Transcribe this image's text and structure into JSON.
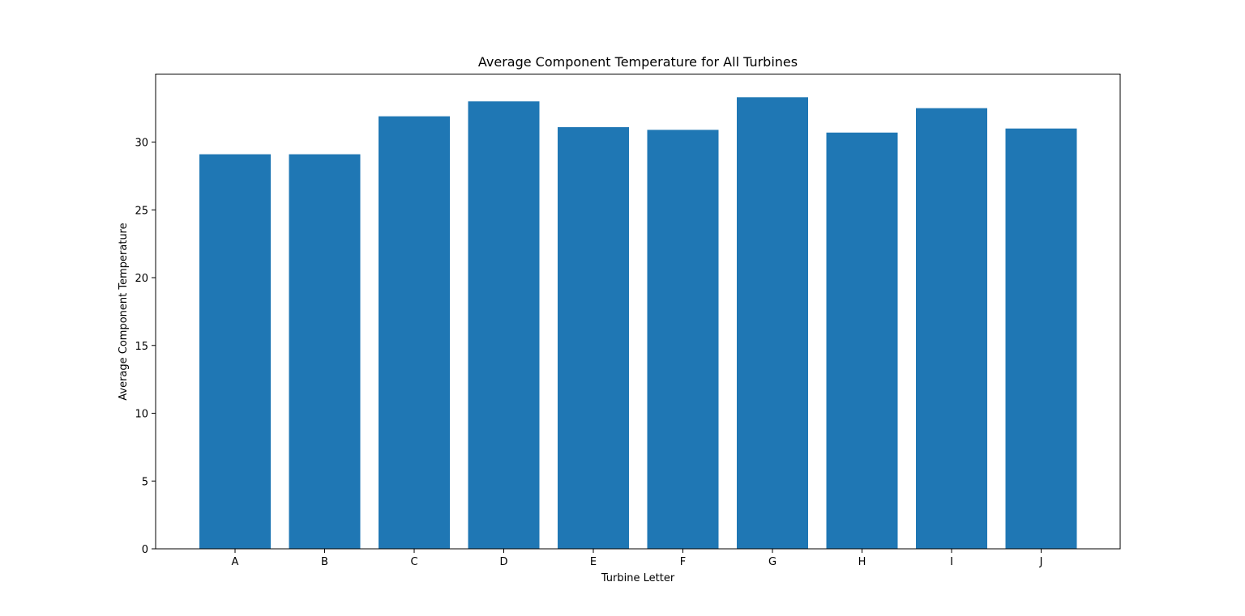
{
  "chart_data": {
    "type": "bar",
    "title": "Average Component Temperature for All Turbines",
    "xlabel": "Turbine Letter",
    "ylabel": "Average Component Temperature",
    "categories": [
      "A",
      "B",
      "C",
      "D",
      "E",
      "F",
      "G",
      "H",
      "I",
      "J"
    ],
    "values": [
      29.1,
      29.1,
      31.9,
      33.0,
      31.1,
      30.9,
      33.3,
      30.7,
      32.5,
      31.0
    ],
    "ylim": [
      0,
      35
    ],
    "yticks": [
      0,
      5,
      10,
      15,
      20,
      25,
      30
    ],
    "ytick_labels": [
      "0",
      "5",
      "10",
      "15",
      "20",
      "25",
      "30"
    ],
    "grid": false,
    "bar_color": "#1f77b4"
  }
}
